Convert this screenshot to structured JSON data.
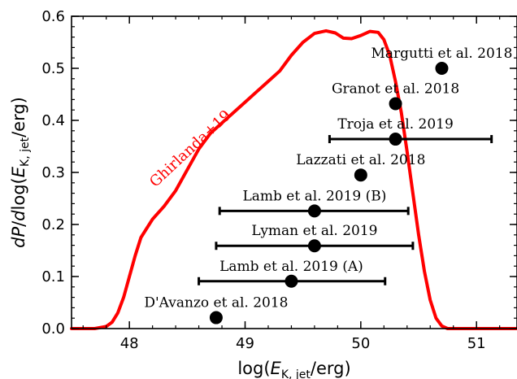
{
  "chart_data": {
    "type": "scatter",
    "xlabel": "log(E_K,jet/erg)",
    "ylabel": "dP/dlog(E_K,jet/erg)",
    "xlim": [
      47.5,
      51.35
    ],
    "ylim": [
      0,
      0.6
    ],
    "xticks": [
      48,
      49,
      50,
      51
    ],
    "yticks": [
      0.0,
      0.1,
      0.2,
      0.3,
      0.4,
      0.5,
      0.6
    ],
    "xtick_labels": [
      "48",
      "49",
      "50",
      "51"
    ],
    "ytick_labels": [
      "0.0",
      "0.1",
      "0.2",
      "0.3",
      "0.4",
      "0.5",
      "0.6"
    ],
    "grid": false,
    "curve": {
      "name": "Ghirlanda+19",
      "color": "#ff0000",
      "points": [
        [
          47.5,
          0.0
        ],
        [
          47.7,
          0.0
        ],
        [
          47.8,
          0.004
        ],
        [
          47.85,
          0.012
        ],
        [
          47.9,
          0.03
        ],
        [
          47.95,
          0.06
        ],
        [
          48.0,
          0.1
        ],
        [
          48.05,
          0.14
        ],
        [
          48.1,
          0.175
        ],
        [
          48.2,
          0.21
        ],
        [
          48.3,
          0.235
        ],
        [
          48.4,
          0.265
        ],
        [
          48.5,
          0.305
        ],
        [
          48.6,
          0.345
        ],
        [
          48.7,
          0.375
        ],
        [
          48.8,
          0.395
        ],
        [
          48.9,
          0.415
        ],
        [
          49.0,
          0.435
        ],
        [
          49.1,
          0.455
        ],
        [
          49.2,
          0.475
        ],
        [
          49.3,
          0.495
        ],
        [
          49.4,
          0.525
        ],
        [
          49.5,
          0.55
        ],
        [
          49.6,
          0.567
        ],
        [
          49.7,
          0.572
        ],
        [
          49.78,
          0.568
        ],
        [
          49.85,
          0.558
        ],
        [
          49.92,
          0.557
        ],
        [
          50.0,
          0.563
        ],
        [
          50.08,
          0.571
        ],
        [
          50.15,
          0.569
        ],
        [
          50.2,
          0.555
        ],
        [
          50.25,
          0.525
        ],
        [
          50.3,
          0.475
        ],
        [
          50.35,
          0.415
        ],
        [
          50.4,
          0.34
        ],
        [
          50.45,
          0.26
        ],
        [
          50.5,
          0.18
        ],
        [
          50.55,
          0.11
        ],
        [
          50.6,
          0.055
        ],
        [
          50.65,
          0.02
        ],
        [
          50.7,
          0.005
        ],
        [
          50.75,
          0.0
        ],
        [
          51.35,
          0.0
        ]
      ]
    },
    "points": [
      {
        "label": "Margutti et al. 2018",
        "x": 50.7,
        "y": 0.5,
        "xerr": null
      },
      {
        "label": "Granot et al. 2018",
        "x": 50.3,
        "y": 0.432,
        "xerr": null
      },
      {
        "label": "Troja et al. 2019",
        "x": 50.3,
        "y": 0.364,
        "xerr": [
          49.73,
          51.13
        ]
      },
      {
        "label": "Lazzati et al. 2018",
        "x": 50.0,
        "y": 0.295,
        "xerr": null
      },
      {
        "label": "Lamb et al. 2019 (B)",
        "x": 49.6,
        "y": 0.226,
        "xerr": [
          48.78,
          50.41
        ]
      },
      {
        "label": "Lyman et al. 2019",
        "x": 49.6,
        "y": 0.159,
        "xerr": [
          48.75,
          50.45
        ]
      },
      {
        "label": "Lamb et al. 2019 (A)",
        "x": 49.4,
        "y": 0.091,
        "xerr": [
          48.6,
          50.21
        ]
      },
      {
        "label": "D'Avanzo et al. 2018",
        "x": 48.75,
        "y": 0.021,
        "xerr": null
      }
    ]
  }
}
